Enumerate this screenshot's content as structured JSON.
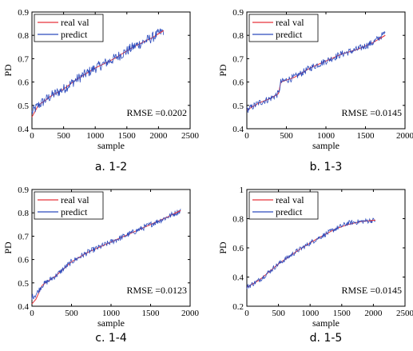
{
  "figure": {
    "legend_labels": [
      "real val",
      "predict"
    ],
    "colors": {
      "real": "#e8333b",
      "predict": "#2c4bbd"
    },
    "ylabel": "PD",
    "xlabel": "sample"
  },
  "chart_data": [
    {
      "type": "line",
      "caption": "a. 1-2",
      "title": "",
      "xlabel": "sample",
      "ylabel": "PD",
      "xlim": [
        0,
        2500
      ],
      "ylim": [
        0.4,
        0.9
      ],
      "xticks": [
        0,
        500,
        1000,
        1500,
        2000,
        2500
      ],
      "yticks": [
        0.4,
        0.5,
        0.6,
        0.7,
        0.8,
        0.9
      ],
      "annotation": "RMSE =0.0202",
      "legend": "top-left",
      "n_samples": 2080,
      "series": [
        {
          "name": "real val",
          "x": [
            0,
            100,
            300,
            500,
            700,
            1000,
            1300,
            1600,
            1900,
            2080
          ],
          "y": [
            0.45,
            0.5,
            0.54,
            0.57,
            0.61,
            0.66,
            0.7,
            0.75,
            0.79,
            0.82
          ]
        },
        {
          "name": "predict",
          "x": [
            0,
            100,
            300,
            500,
            700,
            1000,
            1300,
            1600,
            1900,
            2080
          ],
          "y": [
            0.47,
            0.5,
            0.54,
            0.57,
            0.61,
            0.66,
            0.7,
            0.75,
            0.79,
            0.82
          ],
          "noise": 0.045
        }
      ]
    },
    {
      "type": "line",
      "caption": "b. 1-3",
      "title": "",
      "xlabel": "sample",
      "ylabel": "PD",
      "xlim": [
        0,
        2000
      ],
      "ylim": [
        0.4,
        0.9
      ],
      "xticks": [
        0,
        500,
        1000,
        1500,
        2000
      ],
      "yticks": [
        0.4,
        0.5,
        0.6,
        0.7,
        0.8,
        0.9
      ],
      "annotation": "RMSE =0.0145",
      "legend": "top-left",
      "n_samples": 1750,
      "series": [
        {
          "name": "real val",
          "x": [
            0,
            150,
            300,
            400,
            430,
            600,
            800,
            1000,
            1200,
            1400,
            1600,
            1750
          ],
          "y": [
            0.48,
            0.51,
            0.53,
            0.55,
            0.6,
            0.62,
            0.66,
            0.69,
            0.72,
            0.74,
            0.77,
            0.8
          ]
        },
        {
          "name": "predict",
          "x": [
            0,
            150,
            300,
            400,
            430,
            600,
            800,
            1000,
            1200,
            1400,
            1600,
            1750
          ],
          "y": [
            0.48,
            0.51,
            0.53,
            0.55,
            0.6,
            0.62,
            0.66,
            0.69,
            0.72,
            0.74,
            0.77,
            0.81
          ],
          "noise": 0.03
        }
      ]
    },
    {
      "type": "line",
      "caption": "c. 1-4",
      "title": "",
      "xlabel": "sample",
      "ylabel": "PD",
      "xlim": [
        0,
        2000
      ],
      "ylim": [
        0.4,
        0.9
      ],
      "xticks": [
        0,
        500,
        1000,
        1500,
        2000
      ],
      "yticks": [
        0.4,
        0.5,
        0.6,
        0.7,
        0.8,
        0.9
      ],
      "annotation": "RMSE =0.0123",
      "legend": "top-left",
      "n_samples": 1880,
      "series": [
        {
          "name": "real val",
          "x": [
            0,
            50,
            130,
            300,
            500,
            700,
            900,
            1100,
            1300,
            1500,
            1700,
            1880
          ],
          "y": [
            0.41,
            0.43,
            0.49,
            0.53,
            0.59,
            0.63,
            0.66,
            0.69,
            0.72,
            0.75,
            0.78,
            0.81
          ]
        },
        {
          "name": "predict",
          "x": [
            0,
            50,
            130,
            300,
            500,
            700,
            900,
            1100,
            1300,
            1500,
            1700,
            1880
          ],
          "y": [
            0.44,
            0.45,
            0.49,
            0.53,
            0.59,
            0.63,
            0.66,
            0.69,
            0.72,
            0.75,
            0.78,
            0.81
          ],
          "noise": 0.025
        }
      ]
    },
    {
      "type": "line",
      "caption": "d. 1-5",
      "title": "",
      "xlabel": "sample",
      "ylabel": "PD",
      "xlim": [
        0,
        2500
      ],
      "ylim": [
        0.2,
        1.0
      ],
      "xticks": [
        0,
        500,
        1000,
        1500,
        2000,
        2500
      ],
      "yticks": [
        0.2,
        0.4,
        0.6,
        0.8,
        1.0
      ],
      "annotation": "RMSE =0.0145",
      "legend": "top-left",
      "n_samples": 2030,
      "series": [
        {
          "name": "real val",
          "x": [
            0,
            200,
            500,
            800,
            1100,
            1400,
            1600,
            1800,
            2030
          ],
          "y": [
            0.33,
            0.38,
            0.49,
            0.58,
            0.66,
            0.73,
            0.76,
            0.78,
            0.79
          ]
        },
        {
          "name": "predict",
          "x": [
            0,
            200,
            500,
            800,
            1100,
            1400,
            1600,
            1800,
            2030
          ],
          "y": [
            0.33,
            0.38,
            0.49,
            0.58,
            0.66,
            0.73,
            0.77,
            0.78,
            0.79
          ],
          "noise": 0.035
        }
      ]
    }
  ]
}
